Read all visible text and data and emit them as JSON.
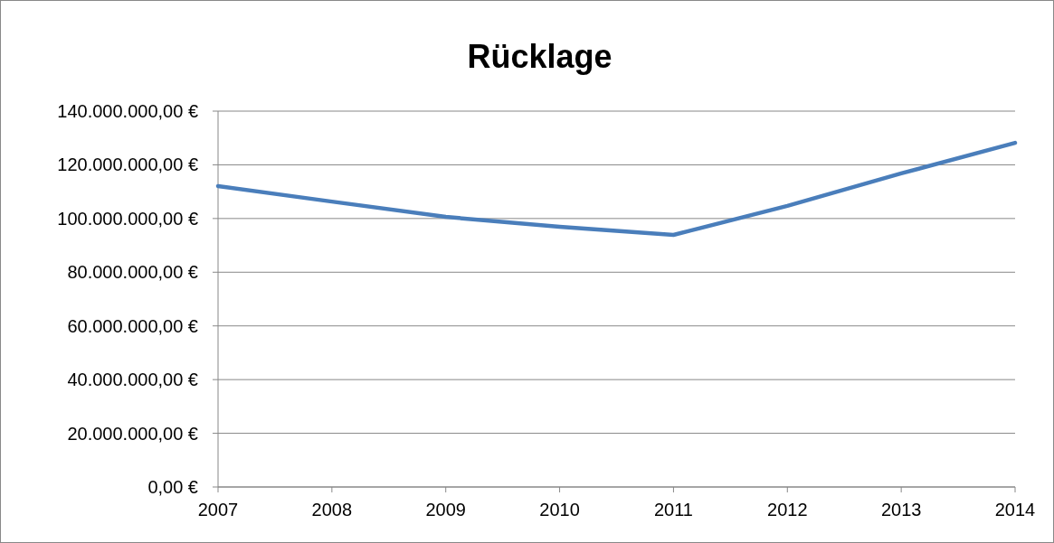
{
  "chart_data": {
    "type": "line",
    "title": "Rücklage",
    "x": [
      2007,
      2008,
      2009,
      2010,
      2011,
      2012,
      2013,
      2014
    ],
    "series": [
      {
        "color": "#4a7ebb",
        "values": [
          112100000,
          106300000,
          100600000,
          96900000,
          93900000,
          104700000,
          116800000,
          128200000
        ]
      }
    ],
    "xlim": [
      2007,
      2014
    ],
    "xticks": [
      2007,
      2008,
      2009,
      2010,
      2011,
      2012,
      2013,
      2014
    ],
    "ylim": [
      0,
      140000000
    ],
    "yticks": [
      {
        "value": 0,
        "label": "0,00 €"
      },
      {
        "value": 20000000,
        "label": "20.000.000,00 €"
      },
      {
        "value": 40000000,
        "label": "40.000.000,00 €"
      },
      {
        "value": 60000000,
        "label": "60.000.000,00 €"
      },
      {
        "value": 80000000,
        "label": "80.000.000,00 €"
      },
      {
        "value": 100000000,
        "label": "100.000.000,00 €"
      },
      {
        "value": 120000000,
        "label": "120.000.000,00 €"
      },
      {
        "value": 140000000,
        "label": "140.000.000,00 €"
      }
    ],
    "grid": "y",
    "marker": "none",
    "line_style": "solid"
  }
}
